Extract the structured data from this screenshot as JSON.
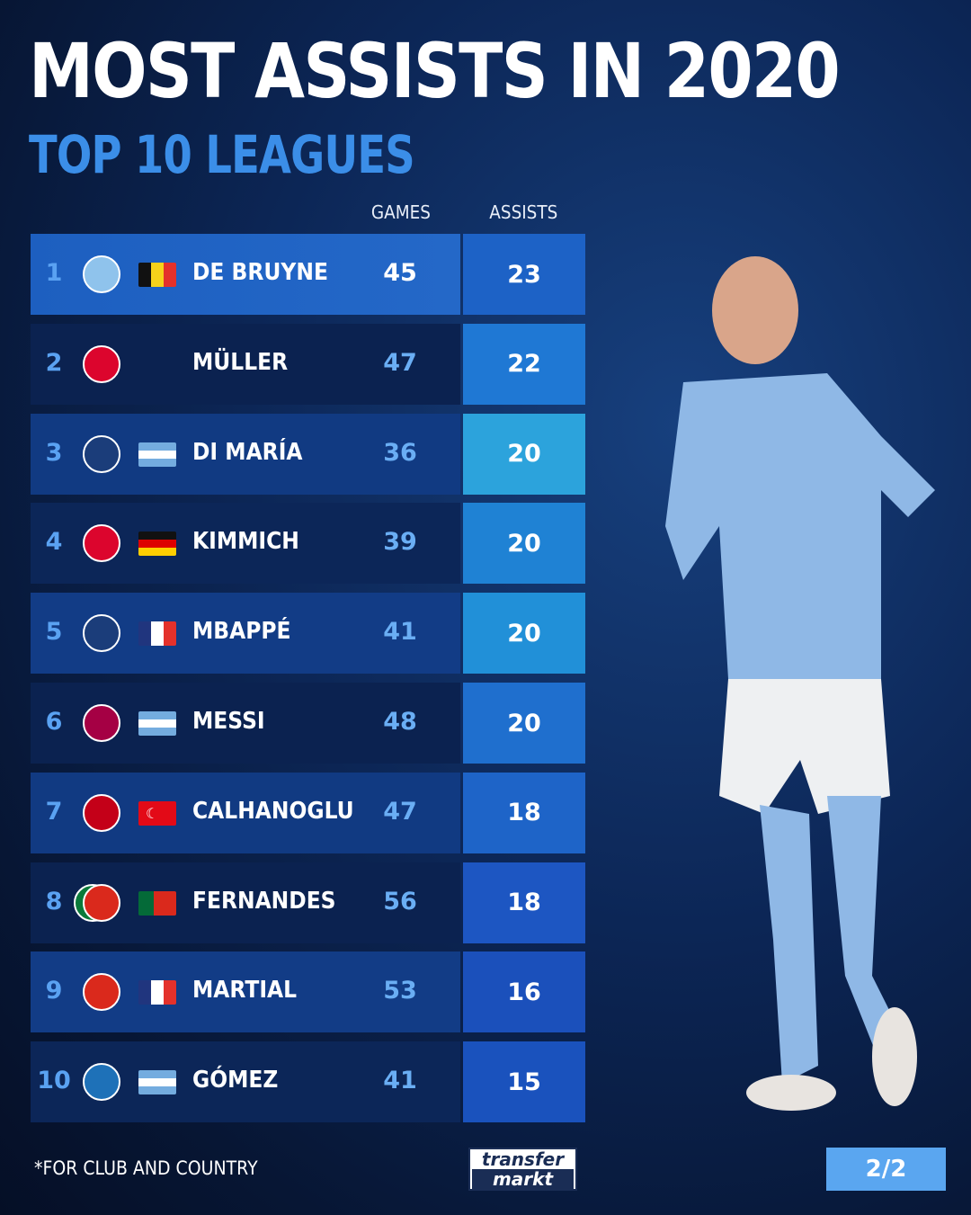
{
  "title": "MOST ASSISTS IN 2020",
  "subtitle": "TOP 10 LEAGUES",
  "footnote": "*FOR CLUB AND COUNTRY",
  "logo": {
    "line1": "transfer",
    "line2": "markt"
  },
  "page_indicator": "2/2",
  "colors": {
    "accent": "#3b8ee8",
    "rank": "#5aa2f2",
    "page_badge": "#5aa6f0"
  },
  "chart_data": {
    "type": "table",
    "columns": [
      "GAMES",
      "ASSISTS"
    ],
    "rows": [
      {
        "rank": "1",
        "club": "manchester-city",
        "flag": "belgium",
        "name": "DE BRUYNE",
        "games": "45",
        "assists": "23"
      },
      {
        "rank": "2",
        "club": "bayern-munich",
        "flag": "",
        "name": "MÜLLER",
        "games": "47",
        "assists": "22"
      },
      {
        "rank": "3",
        "club": "paris-saint-germain",
        "flag": "argentina",
        "name": "DI MARÍA",
        "games": "36",
        "assists": "20"
      },
      {
        "rank": "4",
        "club": "bayern-munich",
        "flag": "germany",
        "name": "KIMMICH",
        "games": "39",
        "assists": "20"
      },
      {
        "rank": "5",
        "club": "paris-saint-germain",
        "flag": "france",
        "name": "MBAPPÉ",
        "games": "41",
        "assists": "20"
      },
      {
        "rank": "6",
        "club": "fc-barcelona",
        "flag": "argentina",
        "name": "MESSI",
        "games": "48",
        "assists": "20"
      },
      {
        "rank": "7",
        "club": "ac-milan",
        "flag": "turkey",
        "name": "CALHANOGLU",
        "games": "47",
        "assists": "18"
      },
      {
        "rank": "8",
        "club": "sporting-cp+manchester-united",
        "flag": "portugal",
        "name": "FERNANDES",
        "games": "56",
        "assists": "18"
      },
      {
        "rank": "9",
        "club": "manchester-united",
        "flag": "france",
        "name": "MARTIAL",
        "games": "53",
        "assists": "16"
      },
      {
        "rank": "10",
        "club": "atalanta",
        "flag": "argentina",
        "name": "GÓMEZ",
        "games": "41",
        "assists": "15"
      }
    ]
  }
}
